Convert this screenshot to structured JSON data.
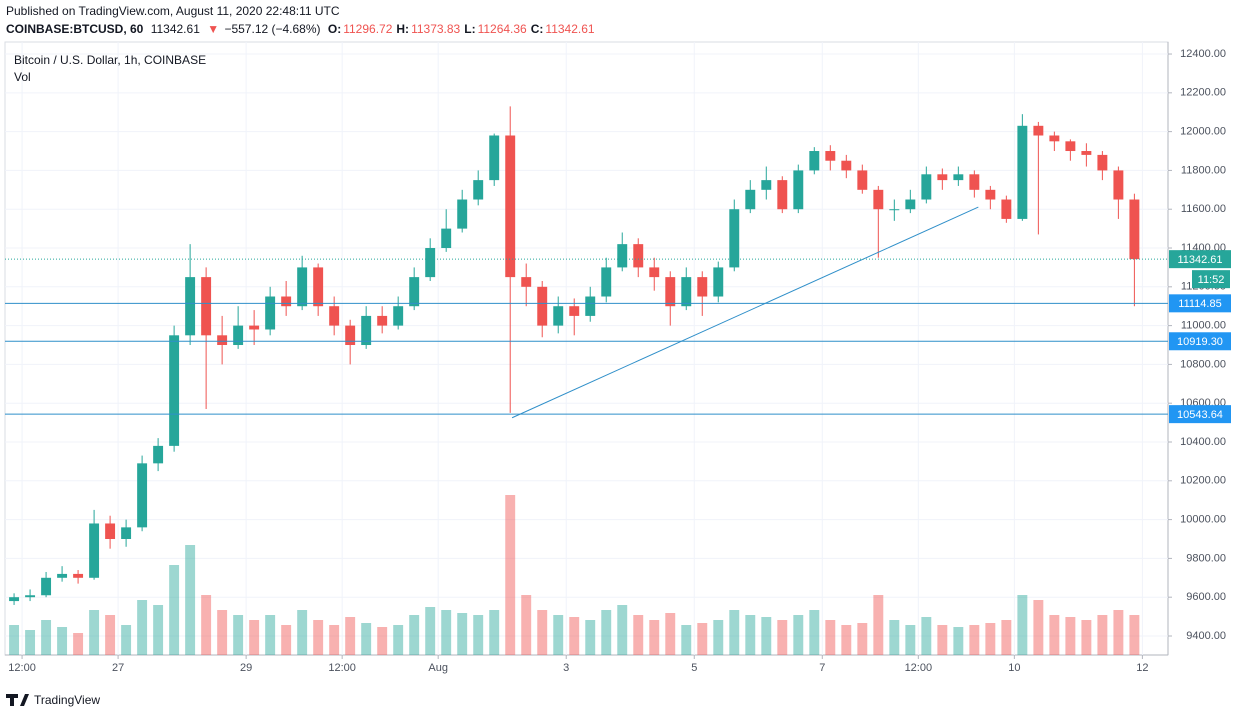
{
  "header": {
    "published": "Published on TradingView.com, August 11, 2020 22:48:11 UTC",
    "symbol": "COINBASE:BTCUSD, 60",
    "price": "11342.61",
    "arrow": "▼",
    "change": "−557.12 (−4.68%)",
    "ohlc": [
      {
        "label": "O:",
        "value": "11296.72"
      },
      {
        "label": "H:",
        "value": "11373.83"
      },
      {
        "label": "L:",
        "value": "11264.36"
      },
      {
        "label": "C:",
        "value": "11342.61"
      }
    ]
  },
  "chart_data": {
    "type": "candlestick",
    "title": "Bitcoin / U.S. Dollar, 1h, COINBASE",
    "volume_label": "Vol",
    "up_color": "#26a69a",
    "down_color": "#ef5350",
    "level_color": "#2f8fc9",
    "x": [
      6,
      12,
      18,
      24,
      30,
      36,
      42,
      48,
      54,
      60,
      66,
      72,
      78,
      84,
      90,
      96,
      102,
      108,
      114,
      120,
      126,
      132,
      138,
      144,
      150,
      156,
      162,
      168,
      174,
      180,
      186,
      192,
      198,
      204,
      210,
      216,
      222,
      228,
      234,
      240,
      246,
      252,
      258,
      264,
      270,
      276,
      282,
      288,
      294,
      300,
      306,
      312,
      318,
      324,
      330,
      336,
      342,
      348,
      354,
      360,
      366,
      372,
      378,
      384,
      390,
      396,
      402,
      408,
      414,
      420,
      426
    ],
    "open": [
      9580,
      9600,
      9610,
      9700,
      9720,
      9700,
      9980,
      9900,
      9960,
      10290,
      10380,
      10950,
      11250,
      10950,
      10900,
      11000,
      10980,
      11150,
      11100,
      11300,
      11100,
      11000,
      10900,
      11050,
      11000,
      11100,
      11250,
      11400,
      11500,
      11650,
      11750,
      11980,
      11250,
      11200,
      11000,
      11100,
      11050,
      11150,
      11300,
      11420,
      11300,
      11250,
      11100,
      11250,
      11150,
      11300,
      11600,
      11700,
      11750,
      11600,
      11800,
      11900,
      11850,
      11800,
      11700,
      11600,
      11600,
      11650,
      11780,
      11750,
      11780,
      11700,
      11650,
      11550,
      12030,
      11980,
      11950,
      11900,
      11880,
      11800,
      11650
    ],
    "high": [
      9620,
      9640,
      9730,
      9760,
      9740,
      10050,
      10020,
      10000,
      10330,
      10420,
      11000,
      11420,
      11300,
      11050,
      11100,
      11080,
      11200,
      11230,
      11360,
      11320,
      11150,
      11030,
      11100,
      11100,
      11150,
      11300,
      11450,
      11600,
      11700,
      11800,
      11990,
      12130,
      11320,
      11230,
      11150,
      11140,
      11200,
      11350,
      11480,
      11450,
      11350,
      11280,
      11300,
      11280,
      11330,
      11650,
      11750,
      11820,
      11770,
      11830,
      11920,
      11930,
      11880,
      11830,
      11720,
      11650,
      11700,
      11820,
      11810,
      11820,
      11800,
      11720,
      11670,
      12090,
      12050,
      12000,
      11960,
      11940,
      11900,
      11820,
      11680
    ],
    "low": [
      9560,
      9580,
      9600,
      9680,
      9670,
      9690,
      9850,
      9860,
      9940,
      10250,
      10350,
      10900,
      10570,
      10800,
      10880,
      10900,
      10950,
      11050,
      11080,
      11050,
      10950,
      10800,
      10880,
      10960,
      10980,
      11080,
      11230,
      11380,
      11480,
      11620,
      11720,
      10550,
      11100,
      10940,
      10960,
      10950,
      11020,
      11120,
      11280,
      11250,
      11180,
      11000,
      11080,
      11050,
      11120,
      11280,
      11580,
      11650,
      11580,
      11580,
      11780,
      11800,
      11760,
      11680,
      11350,
      11540,
      11580,
      11630,
      11700,
      11720,
      11660,
      11600,
      11530,
      11540,
      11470,
      11900,
      11850,
      11820,
      11750,
      11550,
      11100
    ],
    "close": [
      9600,
      9610,
      9700,
      9720,
      9700,
      9980,
      9900,
      9960,
      10290,
      10380,
      10950,
      11250,
      10950,
      10900,
      11000,
      10980,
      11150,
      11100,
      11300,
      11100,
      11000,
      10900,
      11050,
      11000,
      11100,
      11250,
      11400,
      11500,
      11650,
      11750,
      11980,
      11250,
      11200,
      11000,
      11100,
      11050,
      11150,
      11300,
      11420,
      11300,
      11250,
      11100,
      11250,
      11150,
      11300,
      11600,
      11700,
      11750,
      11600,
      11800,
      11900,
      11850,
      11800,
      11700,
      11600,
      11600,
      11650,
      11780,
      11750,
      11780,
      11700,
      11650,
      11550,
      12030,
      11980,
      11950,
      11900,
      11880,
      11800,
      11650,
      11342.61
    ],
    "volume": [
      30,
      25,
      35,
      28,
      22,
      45,
      40,
      30,
      55,
      50,
      90,
      110,
      60,
      45,
      40,
      35,
      40,
      30,
      45,
      35,
      30,
      38,
      32,
      28,
      30,
      40,
      48,
      45,
      42,
      40,
      45,
      160,
      60,
      45,
      40,
      38,
      35,
      45,
      50,
      40,
      35,
      42,
      30,
      32,
      35,
      45,
      40,
      38,
      35,
      40,
      45,
      35,
      30,
      32,
      60,
      35,
      30,
      38,
      30,
      28,
      30,
      32,
      35,
      60,
      55,
      40,
      38,
      35,
      40,
      45,
      40
    ],
    "xlim": [
      5.6,
      441.6
    ],
    "ylim": [
      9302,
      12462
    ],
    "xticks": [
      {
        "value": 12,
        "label": "12:00"
      },
      {
        "value": 48,
        "label": "27"
      },
      {
        "value": 96,
        "label": "29"
      },
      {
        "value": 132,
        "label": "12:00"
      },
      {
        "value": 168,
        "label": "Aug"
      },
      {
        "value": 216,
        "label": "3"
      },
      {
        "value": 264,
        "label": "5"
      },
      {
        "value": 312,
        "label": "7"
      },
      {
        "value": 348,
        "label": "12:00"
      },
      {
        "value": 384,
        "label": "10"
      },
      {
        "value": 432,
        "label": "12"
      }
    ],
    "yticks": [
      {
        "value": 9400,
        "label": "9400.00"
      },
      {
        "value": 9600,
        "label": "9600.00"
      },
      {
        "value": 9800,
        "label": "9800.00"
      },
      {
        "value": 10000,
        "label": "10000.00"
      },
      {
        "value": 10200,
        "label": "10200.00"
      },
      {
        "value": 10400,
        "label": "10400.00"
      },
      {
        "value": 10600,
        "label": "10600.00"
      },
      {
        "value": 10800,
        "label": "10800.00"
      },
      {
        "value": 11000,
        "label": "11000.00"
      },
      {
        "value": 11200,
        "label": "11200.00"
      },
      {
        "value": 11400,
        "label": "11400.00"
      },
      {
        "value": 11600,
        "label": "11600.00"
      },
      {
        "value": 11800,
        "label": "11800.00"
      },
      {
        "value": 12000,
        "label": "12000.00"
      },
      {
        "value": 12200,
        "label": "12200.00"
      },
      {
        "value": 12400,
        "label": "12400.00"
      }
    ],
    "levels": [
      11114.85,
      {
        "value": 10919.3,
        "label": "10919.30"
      },
      10543.64
    ],
    "last_price": 11342.61,
    "countdown": "11:52",
    "trendline": {
      "x": [
        195.7,
        370.5
      ],
      "y": [
        10525,
        11611
      ]
    },
    "grid": true
  },
  "footer": {
    "brand": "TradingView"
  }
}
